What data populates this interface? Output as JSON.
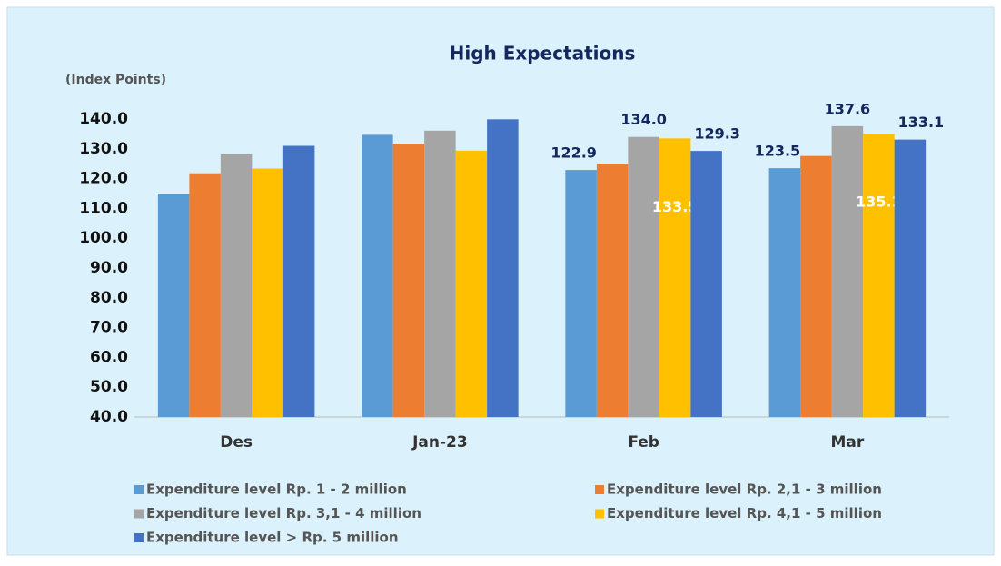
{
  "chart_data": {
    "type": "bar",
    "title": "High Expectations",
    "y_label": "(Index Points)",
    "categories": [
      "Des",
      "Jan-23",
      "Feb",
      "Mar"
    ],
    "series": [
      {
        "name": "Expenditure level Rp. 1  - 2 million",
        "color": "#5b9bd5",
        "values": [
          115.0,
          134.7,
          122.9,
          123.5
        ],
        "value_labels": [
          null,
          null,
          "122.9",
          "123.5"
        ]
      },
      {
        "name": "Expenditure level Rp. 2,1  - 3 million",
        "color": "#ed7d31",
        "values": [
          121.8,
          131.7,
          125.0,
          127.6
        ]
      },
      {
        "name": "Expenditure level Rp. 3,1 - 4 million",
        "color": "#a5a5a5",
        "values": [
          128.2,
          136.1,
          134.0,
          137.6
        ],
        "value_labels": [
          null,
          null,
          "134.0",
          "137.6"
        ]
      },
      {
        "name": "Expenditure level Rp. 4,1 - 5 million",
        "color": "#ffc000",
        "values": [
          123.4,
          129.4,
          133.5,
          135.1
        ],
        "value_labels": [
          null,
          null,
          "133.5",
          "135.1"
        ]
      },
      {
        "name": "Expenditure level > Rp. 5 million",
        "color": "#4472c4",
        "values": [
          131.0,
          139.9,
          129.3,
          133.1
        ],
        "value_labels": [
          null,
          null,
          "129.3",
          "133.1"
        ]
      }
    ],
    "ylim": [
      40,
      140
    ],
    "yticks": [
      {
        "value": 40,
        "label": "40.0"
      },
      {
        "value": 50,
        "label": "50.0"
      },
      {
        "value": 60,
        "label": "60.0"
      },
      {
        "value": 70,
        "label": "70.0"
      },
      {
        "value": 80,
        "label": "80.0"
      },
      {
        "value": 90,
        "label": "90.0"
      },
      {
        "value": 100,
        "label": "100.0"
      },
      {
        "value": 110,
        "label": "110.0"
      },
      {
        "value": 120,
        "label": "120.0"
      },
      {
        "value": 130,
        "label": "130.0"
      },
      {
        "value": 140,
        "label": "140.0"
      }
    ],
    "grid": false
  }
}
